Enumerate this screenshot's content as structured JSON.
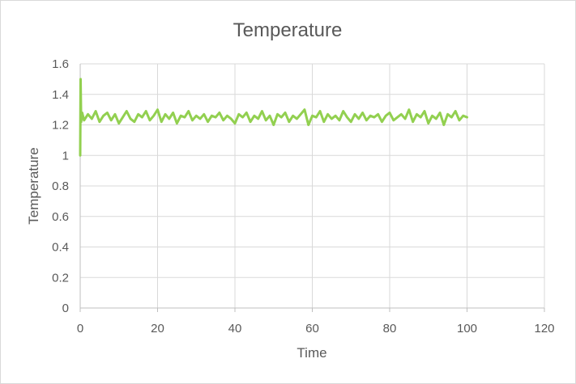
{
  "chart_data": {
    "type": "line",
    "title": "Temperature",
    "xlabel": "Time",
    "ylabel": "Temperature",
    "xlim": [
      0,
      120
    ],
    "ylim": [
      0,
      1.6
    ],
    "x_ticks": [
      "0",
      "20",
      "40",
      "60",
      "80",
      "100",
      "120"
    ],
    "y_ticks": [
      "0",
      "0.2",
      "0.4",
      "0.6",
      "0.8",
      "1",
      "1.2",
      "1.4",
      "1.6"
    ],
    "grid": true,
    "legend": "none",
    "series": [
      {
        "color": "#92d050",
        "x": [
          0,
          0.1,
          0.25,
          0.5,
          1,
          2,
          3,
          4,
          5,
          6,
          7,
          8,
          9,
          10,
          11,
          12,
          13,
          14,
          15,
          16,
          17,
          18,
          19,
          20,
          21,
          22,
          23,
          24,
          25,
          26,
          27,
          28,
          29,
          30,
          31,
          32,
          33,
          34,
          35,
          36,
          37,
          38,
          39,
          40,
          41,
          42,
          43,
          44,
          45,
          46,
          47,
          48,
          49,
          50,
          51,
          52,
          53,
          54,
          55,
          56,
          57,
          58,
          59,
          60,
          61,
          62,
          63,
          64,
          65,
          66,
          67,
          68,
          69,
          70,
          71,
          72,
          73,
          74,
          75,
          76,
          77,
          78,
          79,
          80,
          81,
          82,
          83,
          84,
          85,
          86,
          87,
          88,
          89,
          90,
          91,
          92,
          93,
          94,
          95,
          96,
          97,
          98,
          99,
          100
        ],
        "y": [
          1.0,
          1.5,
          1.22,
          1.28,
          1.23,
          1.27,
          1.24,
          1.29,
          1.22,
          1.26,
          1.28,
          1.23,
          1.27,
          1.21,
          1.25,
          1.29,
          1.24,
          1.22,
          1.27,
          1.25,
          1.29,
          1.23,
          1.26,
          1.3,
          1.22,
          1.27,
          1.24,
          1.28,
          1.21,
          1.26,
          1.25,
          1.29,
          1.23,
          1.26,
          1.24,
          1.27,
          1.22,
          1.26,
          1.25,
          1.28,
          1.23,
          1.26,
          1.24,
          1.21,
          1.27,
          1.25,
          1.28,
          1.22,
          1.26,
          1.24,
          1.29,
          1.23,
          1.26,
          1.2,
          1.27,
          1.25,
          1.28,
          1.22,
          1.26,
          1.24,
          1.27,
          1.3,
          1.2,
          1.26,
          1.25,
          1.29,
          1.22,
          1.27,
          1.24,
          1.26,
          1.23,
          1.29,
          1.25,
          1.22,
          1.27,
          1.24,
          1.28,
          1.23,
          1.26,
          1.25,
          1.27,
          1.22,
          1.26,
          1.28,
          1.23,
          1.25,
          1.27,
          1.24,
          1.3,
          1.22,
          1.27,
          1.25,
          1.29,
          1.21,
          1.26,
          1.24,
          1.28,
          1.2,
          1.27,
          1.25,
          1.29,
          1.23,
          1.26,
          1.25
        ]
      }
    ]
  }
}
